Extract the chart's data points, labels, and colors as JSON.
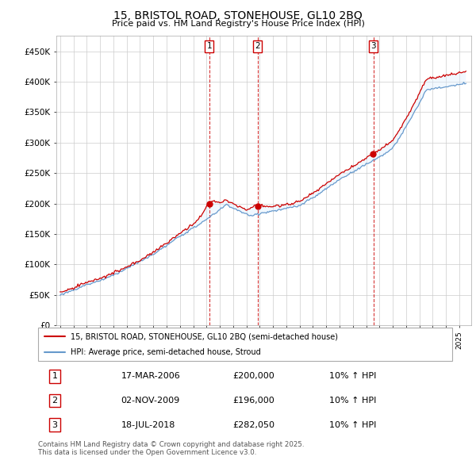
{
  "title": "15, BRISTOL ROAD, STONEHOUSE, GL10 2BQ",
  "subtitle": "Price paid vs. HM Land Registry's House Price Index (HPI)",
  "ylim": [
    0,
    475000
  ],
  "yticks": [
    0,
    50000,
    100000,
    150000,
    200000,
    250000,
    300000,
    350000,
    400000,
    450000
  ],
  "ytick_labels": [
    "£0",
    "£50K",
    "£100K",
    "£150K",
    "£200K",
    "£250K",
    "£300K",
    "£350K",
    "£400K",
    "£450K"
  ],
  "sale_color": "#cc0000",
  "hpi_color": "#6699cc",
  "hpi_fill_color": "#ddeeff",
  "sale_points": [
    {
      "date_num": 2006.21,
      "price": 200000,
      "label": "1"
    },
    {
      "date_num": 2009.84,
      "price": 196000,
      "label": "2"
    },
    {
      "date_num": 2018.54,
      "price": 282050,
      "label": "3"
    }
  ],
  "legend_sale_label": "15, BRISTOL ROAD, STONEHOUSE, GL10 2BQ (semi-detached house)",
  "legend_hpi_label": "HPI: Average price, semi-detached house, Stroud",
  "transactions": [
    {
      "num": "1",
      "date": "17-MAR-2006",
      "price": "£200,000",
      "hpi": "10% ↑ HPI"
    },
    {
      "num": "2",
      "date": "02-NOV-2009",
      "price": "£196,000",
      "hpi": "10% ↑ HPI"
    },
    {
      "num": "3",
      "date": "18-JUL-2018",
      "price": "£282,050",
      "hpi": "10% ↑ HPI"
    }
  ],
  "footer": "Contains HM Land Registry data © Crown copyright and database right 2025.\nThis data is licensed under the Open Government Licence v3.0.",
  "vline_dates": [
    2006.21,
    2009.84,
    2018.54
  ],
  "vline_color": "#cc0000",
  "xlim_start": 1994.7,
  "xlim_end": 2025.9
}
